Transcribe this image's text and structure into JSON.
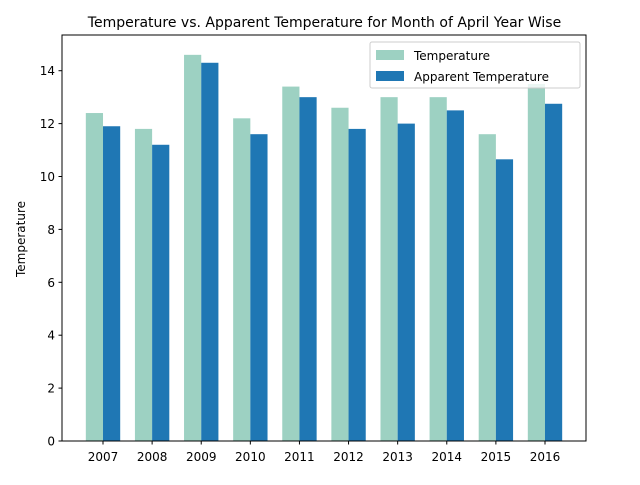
{
  "chart_data": {
    "type": "bar",
    "title": "Temperature vs. Apparent Temperature for Month of April Year Wise",
    "xlabel": "",
    "ylabel": "Temperature",
    "categories": [
      "2007",
      "2008",
      "2009",
      "2010",
      "2011",
      "2012",
      "2013",
      "2014",
      "2015",
      "2016"
    ],
    "series": [
      {
        "name": "Temperature",
        "color": "#9dd1c2",
        "values": [
          12.4,
          11.8,
          14.6,
          12.2,
          13.4,
          12.6,
          13.0,
          13.0,
          11.6,
          13.5
        ]
      },
      {
        "name": "Apparent Temperature",
        "color": "#1f77b4",
        "values": [
          11.9,
          11.2,
          14.3,
          11.6,
          13.0,
          11.8,
          12.0,
          12.5,
          10.65,
          12.75
        ]
      }
    ],
    "ylim": [
      0,
      15.35
    ],
    "yticks": [
      "0",
      "2",
      "4",
      "6",
      "8",
      "10",
      "12",
      "14"
    ],
    "grid": false,
    "legend_position": "top-right"
  }
}
